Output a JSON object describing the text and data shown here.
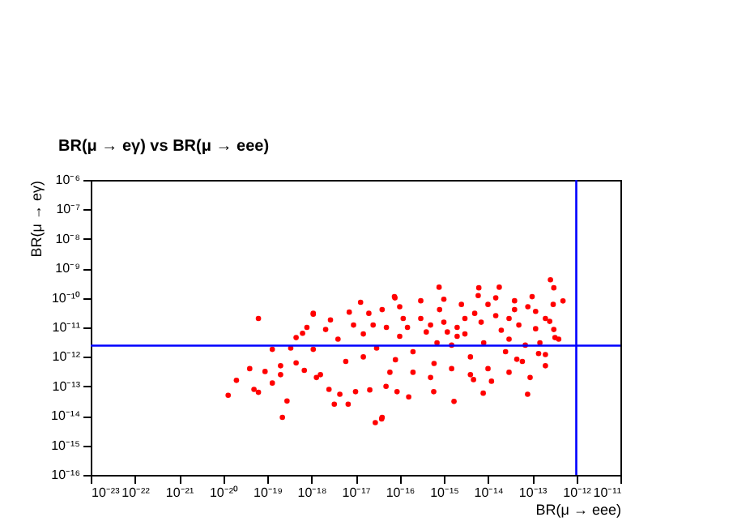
{
  "chart_data": {
    "type": "scatter",
    "title": "BR(μ → eγ) vs BR(μ → eee)",
    "xlabel": "BR(μ → eee)",
    "ylabel": "BR(μ → eγ)",
    "log": "xy",
    "marker": "circle",
    "grid": false,
    "xlim": [
      1e-23,
      1e-11
    ],
    "ylim": [
      1e-16,
      1e-06
    ],
    "xticks": [
      {
        "value": 1e-23,
        "label": "10⁻²³"
      },
      {
        "value": 1e-22,
        "label": "10⁻²²"
      },
      {
        "value": 1e-21,
        "label": "10⁻²¹"
      },
      {
        "value": 1e-20,
        "label": "10⁻²⁰"
      },
      {
        "value": 1e-19,
        "label": "10⁻¹⁹"
      },
      {
        "value": 1e-18,
        "label": "10⁻¹⁸"
      },
      {
        "value": 1e-17,
        "label": "10⁻¹⁷"
      },
      {
        "value": 1e-16,
        "label": "10⁻¹⁶"
      },
      {
        "value": 1e-15,
        "label": "10⁻¹⁵"
      },
      {
        "value": 1e-14,
        "label": "10⁻¹⁴"
      },
      {
        "value": 1e-13,
        "label": "10⁻¹³"
      },
      {
        "value": 1e-12,
        "label": "10⁻¹²"
      },
      {
        "value": 1e-11,
        "label": "10⁻¹¹"
      }
    ],
    "yticks": [
      {
        "value": 1e-16,
        "label": "10⁻¹⁶"
      },
      {
        "value": 1e-15,
        "label": "10⁻¹⁵"
      },
      {
        "value": 1e-14,
        "label": "10⁻¹⁴"
      },
      {
        "value": 1e-13,
        "label": "10⁻¹³"
      },
      {
        "value": 1e-12,
        "label": "10⁻¹²"
      },
      {
        "value": 1e-11,
        "label": "10⁻¹¹"
      },
      {
        "value": 1e-10,
        "label": "10⁻¹⁰"
      },
      {
        "value": 1e-09,
        "label": "10⁻⁹"
      },
      {
        "value": 1e-08,
        "label": "10⁻⁸"
      },
      {
        "value": 1e-07,
        "label": "10⁻⁷"
      },
      {
        "value": 1e-06,
        "label": "10⁻⁶"
      }
    ],
    "ref_lines": [
      {
        "axis": "y",
        "value": 2.4e-12,
        "color": "#0000ff"
      },
      {
        "axis": "x",
        "value": 1e-12,
        "color": "#0000ff"
      }
    ],
    "series": [
      {
        "color": "#ff0000",
        "x": [
          1.3e-20,
          2e-20,
          4e-20,
          6.3e-20,
          5e-20,
          6.3e-20,
          8.9e-20,
          1.3e-19,
          1.3e-19,
          2e-19,
          2.2e-19,
          2.8e-19,
          2e-19,
          3.4e-19,
          4.5e-19,
          6.3e-19,
          4.5e-19,
          6.9e-19,
          7.9e-19,
          1.1e-18,
          1.1e-18,
          1.3e-18,
          1.6e-18,
          2.1e-18,
          2.5e-18,
          3.3e-18,
          4.4e-18,
          6.8e-18,
          1e-17,
          2.1e-17,
          2.8e-17,
          4e-17,
          4.9e-17,
          1.1e-18,
          1.3e-17,
          7.6e-17,
          2.7e-18,
          7.2e-18,
          2.6e-13,
          3.1e-13,
          5e-13,
          7.8e-16,
          6.2e-15,
          1.8e-14,
          7.8e-17,
          2.5e-13,
          7.8e-15,
          7.9e-14,
          1.7e-15,
          3.9e-17,
          5.9e-16,
          3.3e-13,
          3.1e-13,
          1.6e-16,
          8.7e-17,
          4.7e-15,
          4.5e-14,
          1.4e-13,
          2e-17,
          5e-17,
          1e-16,
          3e-16,
          8e-16,
          2e-15,
          5e-15,
          1e-14,
          3e-14,
          8e-14,
          2e-13,
          3e-17,
          8e-17,
          2e-16,
          6e-16,
          1.5e-15,
          4e-15,
          1e-14,
          2.5e-14,
          6e-14,
          1.5e-13,
          1.5e-17,
          4e-17,
          1.2e-16,
          4e-16,
          1e-15,
          3e-15,
          7e-15,
          2e-14,
          5e-14,
          1.2e-13,
          4e-13,
          6e-17,
          2e-16,
          5e-16,
          1.5e-15,
          4e-15,
          1.2e-14,
          3e-14,
          9e-14,
          2e-13,
          1e-16,
          3e-16,
          1e-15,
          2.5e-15,
          6e-15,
          1.5e-14,
          4e-14,
          1e-13,
          3e-13,
          9e-18,
          4e-18,
          1.5e-17,
          6e-18,
          2.5e-17,
          7e-16,
          2e-15,
          8e-15,
          3e-14,
          7e-14,
          2e-13,
          1.5e-16,
          5e-16,
          1.2e-15,
          3e-15,
          1.5e-14,
          4e-14,
          1.2e-13
        ],
        "values": [
          5e-14,
          1.6e-13,
          4e-13,
          2e-11,
          7.9e-14,
          6.3e-14,
          3.2e-13,
          1.8e-12,
          1.3e-13,
          5e-13,
          8.9e-15,
          3.2e-14,
          2.5e-13,
          2e-12,
          4.5e-12,
          6.3e-12,
          6.3e-13,
          3.5e-13,
          1e-11,
          2.8e-11,
          1.8e-12,
          2e-13,
          2.5e-13,
          8.5e-12,
          7.9e-14,
          2.5e-14,
          5.4e-14,
          2.5e-14,
          6.6e-14,
          7.6e-14,
          5.9e-15,
          8.9e-15,
          1e-13,
          3e-11,
          7.1e-11,
          1.1e-10,
          1.8e-11,
          3.3e-11,
          4.1e-10,
          2.2e-10,
          7.9e-11,
          2.3e-10,
          2.2e-10,
          2.3e-10,
          1e-10,
          1.6e-11,
          5.9e-14,
          5.4e-14,
          3.1e-14,
          7.9e-15,
          6.6e-14,
          4.5e-12,
          8.5e-12,
          4.4e-14,
          6.6e-14,
          1.7e-13,
          8.3e-13,
          1.3e-12,
          3e-11,
          1e-11,
          5e-12,
          2e-11,
          4e-11,
          1e-11,
          3e-11,
          6e-11,
          2e-11,
          5e-11,
          2e-11,
          2e-12,
          8e-13,
          1.5e-12,
          6e-13,
          2.5e-12,
          1e-12,
          4e-13,
          1.5e-12,
          7e-13,
          3e-12,
          6e-12,
          4e-11,
          2e-11,
          7e-12,
          1.5e-11,
          6e-12,
          1.5e-11,
          8e-12,
          1.2e-11,
          9e-12,
          4e-12,
          3e-13,
          3e-13,
          2e-13,
          4e-13,
          2.5e-13,
          1.5e-13,
          3e-13,
          2e-13,
          5e-13,
          5e-11,
          8e-11,
          9e-11,
          6e-11,
          1.2e-10,
          1e-10,
          8e-11,
          1.1e-10,
          6e-11,
          1.2e-11,
          4e-12,
          1e-12,
          7e-13,
          1.2e-11,
          3e-12,
          5e-12,
          3e-12,
          4e-12,
          2.5e-12,
          1.2e-12,
          1e-11,
          1.2e-11,
          7e-12,
          2e-11,
          2.5e-11,
          4e-11,
          3.5e-11
        ]
      }
    ]
  }
}
